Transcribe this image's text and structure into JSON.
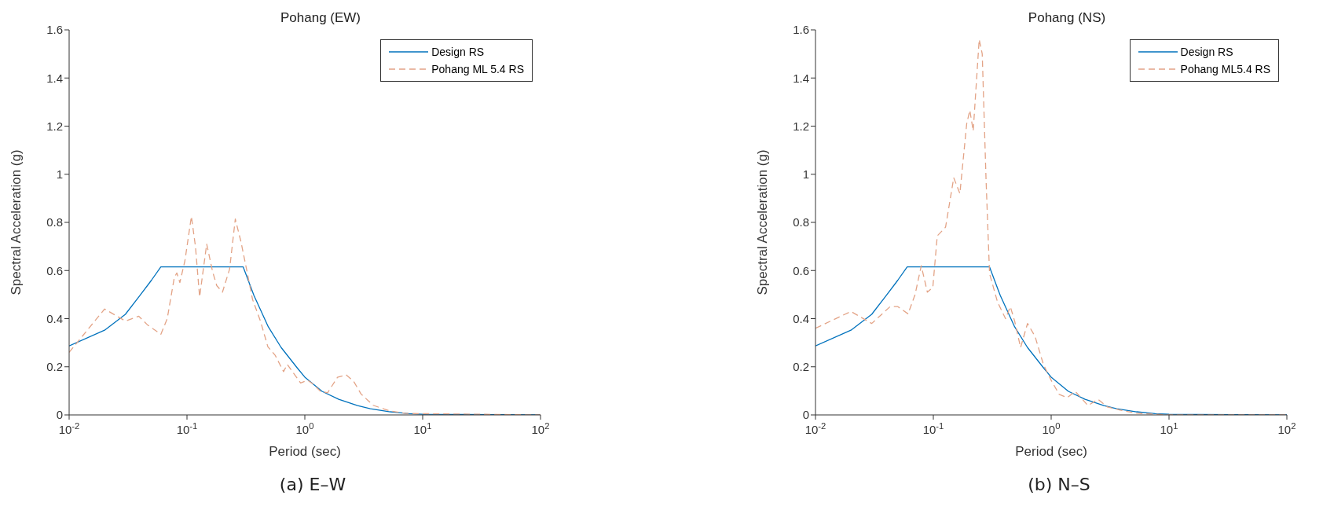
{
  "chart_data": [
    {
      "type": "line",
      "title": "Pohang (EW)",
      "xlabel": "Period (sec)",
      "ylabel": "Spectral Acceleration (g)",
      "annotations": [
        "(a) E–W"
      ],
      "log": "x",
      "legend": "top right",
      "marker": "none",
      "xlim": [
        0.01,
        100
      ],
      "xticks": [
        {
          "value": 0.01,
          "label": "10$^{-2}$"
        },
        {
          "value": 0.1,
          "label": "10$^{-1}$"
        },
        {
          "value": 1,
          "label": "10$^{0}$"
        },
        {
          "value": 10,
          "label": "10$^{1}$"
        },
        {
          "value": 100,
          "label": "10$^{2}$"
        }
      ],
      "ylim": [
        0,
        1.6
      ],
      "yticks": [
        0,
        0.2,
        0.4,
        0.6,
        0.8,
        1,
        1.2,
        1.4,
        1.6
      ],
      "series": [
        {
          "name": "Design RS",
          "color": "#0072bd",
          "line_style": "solid",
          "x": [
            0.01,
            0.02,
            0.03,
            0.039,
            0.05,
            0.06,
            0.3,
            0.37,
            0.49,
            0.63,
            0.86,
            1,
            1.4,
            1.94,
            2.8,
            3.6,
            5.3,
            7.6,
            10,
            100
          ],
          "values": [
            0.287,
            0.352,
            0.418,
            0.49,
            0.56,
            0.615,
            0.615,
            0.496,
            0.366,
            0.28,
            0.196,
            0.157,
            0.098,
            0.065,
            0.039,
            0.026,
            0.013,
            0.005,
            0.003,
            0
          ]
        },
        {
          "name": "Pohang ML 5.4 RS",
          "color": "#e3a386",
          "line_style": "dashed",
          "x": [
            0.01,
            0.02,
            0.03,
            0.039,
            0.046,
            0.06,
            0.068,
            0.078,
            0.082,
            0.087,
            0.096,
            0.109,
            0.118,
            0.128,
            0.147,
            0.165,
            0.179,
            0.2,
            0.23,
            0.257,
            0.287,
            0.32,
            0.36,
            0.42,
            0.486,
            0.56,
            0.66,
            0.71,
            0.82,
            0.92,
            1.06,
            1.18,
            1.36,
            1.56,
            1.89,
            2.24,
            2.6,
            3,
            3.8,
            5.2,
            7.2,
            100
          ],
          "values": [
            0.26,
            0.44,
            0.39,
            0.41,
            0.375,
            0.335,
            0.4,
            0.57,
            0.59,
            0.55,
            0.64,
            0.825,
            0.7,
            0.49,
            0.71,
            0.595,
            0.537,
            0.51,
            0.606,
            0.814,
            0.72,
            0.606,
            0.48,
            0.39,
            0.283,
            0.248,
            0.18,
            0.21,
            0.167,
            0.133,
            0.144,
            0.127,
            0.098,
            0.092,
            0.156,
            0.167,
            0.139,
            0.087,
            0.04,
            0.017,
            0.006,
            0
          ]
        }
      ]
    },
    {
      "type": "line",
      "title": "Pohang (NS)",
      "xlabel": "Period (sec)",
      "ylabel": "Spectral Acceleration (g)",
      "annotations": [
        "(b) N–S"
      ],
      "log": "x",
      "legend": "top right",
      "marker": "none",
      "xlim": [
        0.01,
        100
      ],
      "xticks": [
        {
          "value": 0.01,
          "label": "10$^{-2}$"
        },
        {
          "value": 0.1,
          "label": "10$^{-1}$"
        },
        {
          "value": 1,
          "label": "10$^{0}$"
        },
        {
          "value": 10,
          "label": "10$^{1}$"
        },
        {
          "value": 100,
          "label": "10$^{2}$"
        }
      ],
      "ylim": [
        0,
        1.6
      ],
      "yticks": [
        0,
        0.2,
        0.4,
        0.6,
        0.8,
        1,
        1.2,
        1.4,
        1.6
      ],
      "series": [
        {
          "name": "Design RS",
          "color": "#0072bd",
          "line_style": "solid",
          "x": [
            0.01,
            0.02,
            0.03,
            0.039,
            0.05,
            0.06,
            0.3,
            0.37,
            0.49,
            0.63,
            0.86,
            1,
            1.4,
            1.94,
            2.8,
            3.6,
            5.3,
            7.6,
            10,
            100
          ],
          "values": [
            0.287,
            0.352,
            0.418,
            0.49,
            0.56,
            0.615,
            0.615,
            0.496,
            0.366,
            0.28,
            0.196,
            0.157,
            0.098,
            0.065,
            0.039,
            0.026,
            0.013,
            0.005,
            0.003,
            0
          ]
        },
        {
          "name": "Pohang ML5.4 RS",
          "color": "#e3a386",
          "line_style": "dashed",
          "x": [
            0.01,
            0.02,
            0.03,
            0.043,
            0.05,
            0.061,
            0.07,
            0.079,
            0.089,
            0.099,
            0.108,
            0.127,
            0.149,
            0.168,
            0.192,
            0.204,
            0.218,
            0.245,
            0.26,
            0.28,
            0.3,
            0.35,
            0.41,
            0.45,
            0.49,
            0.55,
            0.63,
            0.73,
            0.86,
            1,
            1.17,
            1.37,
            1.6,
            2.05,
            2.5,
            3,
            3.85,
            5.3,
            7.6,
            10,
            100
          ],
          "values": [
            0.36,
            0.43,
            0.38,
            0.45,
            0.45,
            0.42,
            0.5,
            0.62,
            0.51,
            0.53,
            0.744,
            0.78,
            0.985,
            0.92,
            1.21,
            1.266,
            1.18,
            1.56,
            1.5,
            0.98,
            0.587,
            0.47,
            0.4,
            0.45,
            0.39,
            0.28,
            0.38,
            0.326,
            0.209,
            0.144,
            0.085,
            0.072,
            0.098,
            0.039,
            0.065,
            0.033,
            0.02,
            0.007,
            0.003,
            0,
            0
          ]
        }
      ]
    }
  ]
}
